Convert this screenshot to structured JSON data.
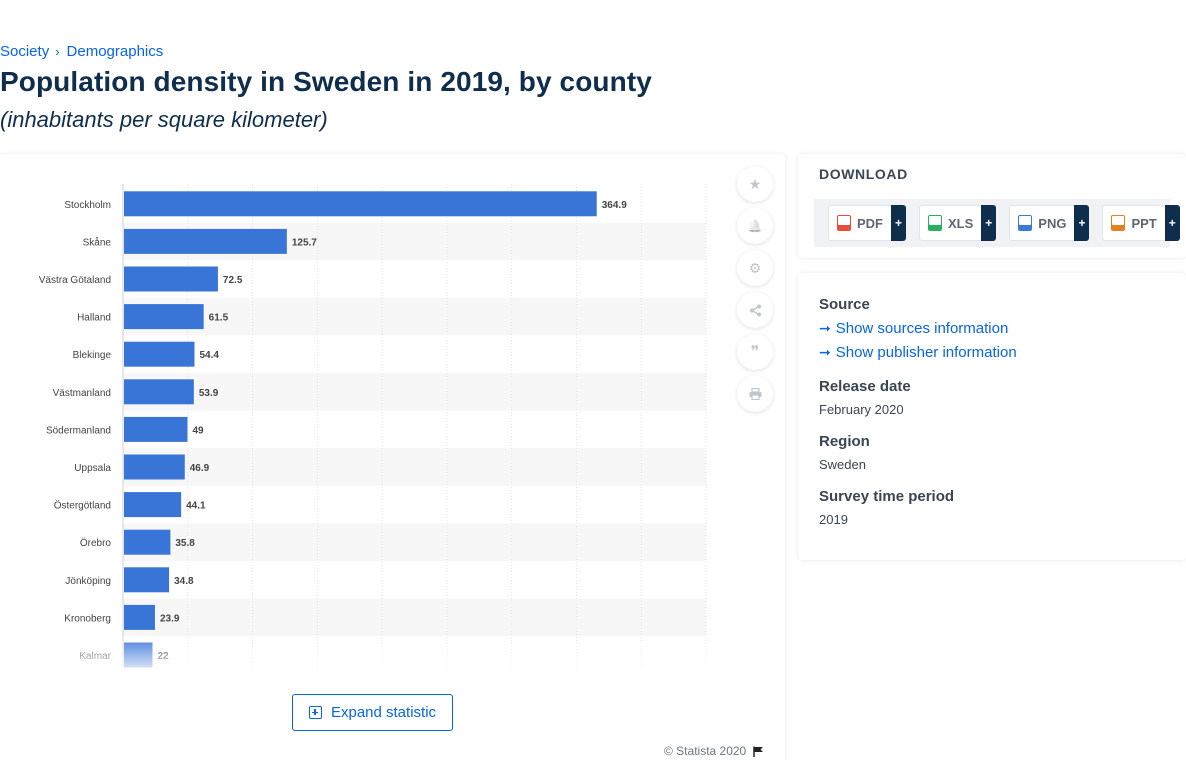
{
  "breadcrumb": {
    "item1": "Society",
    "separator": "›",
    "item2": "Demographics"
  },
  "title": "Population density in Sweden in 2019, by county",
  "subtitle": "(inhabitants per square kilometer)",
  "chart_data": {
    "type": "bar",
    "orientation": "horizontal",
    "categories": [
      "Stockholm",
      "Skåne",
      "Västra Götaland",
      "Halland",
      "Blekinge",
      "Västmanland",
      "Södermanland",
      "Uppsala",
      "Östergötland",
      "Örebro",
      "Jönköping",
      "Kronoberg",
      "Kalmar"
    ],
    "values": [
      364.9,
      125.7,
      72.5,
      61.5,
      54.4,
      53.9,
      49,
      46.9,
      44.1,
      35.8,
      34.8,
      23.9,
      22
    ],
    "value_labels": [
      "364.9",
      "125.7",
      "72.5",
      "61.5",
      "54.4",
      "53.9",
      "49",
      "46.9",
      "44.1",
      "35.8",
      "34.8",
      "23.9",
      "22"
    ],
    "xlim": [
      0,
      450
    ],
    "grid": true,
    "bar_color": "#3875d7"
  },
  "expand_label": "Expand statistic",
  "copyright": "© Statista 2020",
  "tools": [
    {
      "icon": "star-icon",
      "glyph": "★"
    },
    {
      "icon": "bell-icon",
      "glyph": "🔔"
    },
    {
      "icon": "gear-icon",
      "glyph": "⚙"
    },
    {
      "icon": "share-icon",
      "glyph": "⋘"
    },
    {
      "icon": "quote-icon",
      "glyph": "❞"
    },
    {
      "icon": "print-icon",
      "glyph": "⎙"
    }
  ],
  "download": {
    "title": "DOWNLOAD",
    "plus": "+",
    "formats": [
      {
        "label": "PDF",
        "color": "#e74c3c"
      },
      {
        "label": "XLS",
        "color": "#27ae60"
      },
      {
        "label": "PNG",
        "color": "#3a7bd5"
      },
      {
        "label": "PPT",
        "color": "#e67e22"
      }
    ]
  },
  "info": {
    "source_label": "Source",
    "show_sources": "Show sources information",
    "show_publisher": "Show publisher information",
    "release_label": "Release date",
    "release_value": "February 2020",
    "region_label": "Region",
    "region_value": "Sweden",
    "survey_label": "Survey time period",
    "survey_value": "2019"
  }
}
